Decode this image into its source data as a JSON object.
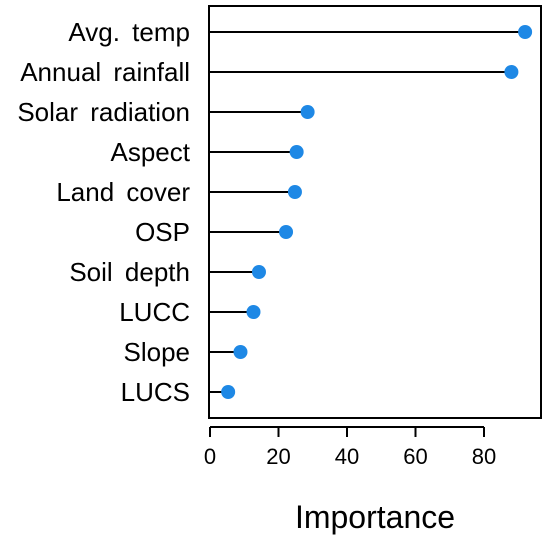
{
  "chart_data": {
    "type": "lollipop",
    "orientation": "horizontal",
    "categories": [
      "Avg. temp",
      "Annual rainfall",
      "Solar radiation",
      "Aspect",
      "Land cover",
      "OSP",
      "Soil depth",
      "LUCC",
      "Slope",
      "LUCS"
    ],
    "values": [
      92,
      88,
      28.5,
      25.3,
      24.8,
      22.2,
      14.3,
      12.7,
      8.9,
      5.3
    ],
    "xlabel": "Importance",
    "ylabel": "",
    "xlim": [
      0,
      100
    ],
    "xticks": [
      "0",
      "20",
      "40",
      "60",
      "80"
    ],
    "grid": false,
    "legend": "none",
    "colors": {
      "point": "#1e88e5",
      "stem": "#000000",
      "axis": "#000000"
    }
  }
}
